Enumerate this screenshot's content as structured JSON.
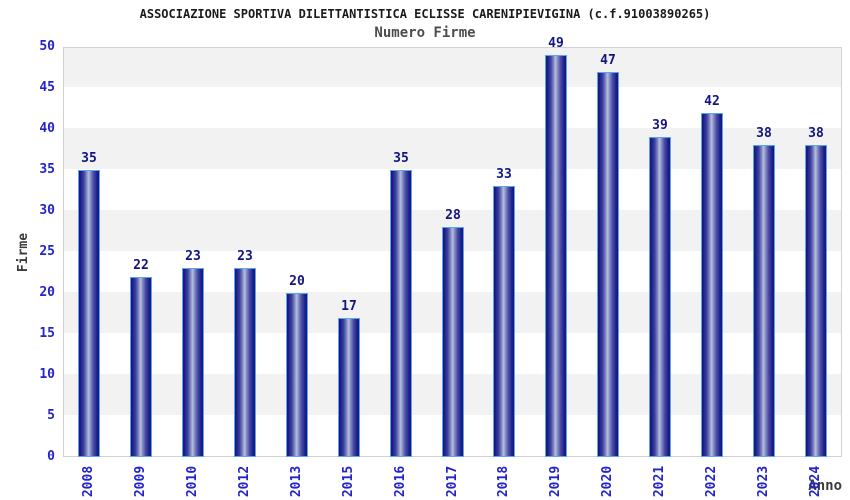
{
  "header": {
    "title": "ASSOCIAZIONE SPORTIVA DILETTANTISTICA ECLISSE CARENIPIEVIGINA (c.f.91003890265)",
    "subtitle": "Numero Firme"
  },
  "chart_data": {
    "type": "bar",
    "title": "ASSOCIAZIONE SPORTIVA DILETTANTISTICA ECLISSE CARENIPIEVIGINA (c.f.91003890265)",
    "subtitle": "Numero Firme",
    "categories": [
      "2008",
      "2009",
      "2010",
      "2012",
      "2013",
      "2015",
      "2016",
      "2017",
      "2018",
      "2019",
      "2020",
      "2021",
      "2022",
      "2023",
      "2024"
    ],
    "values": [
      35,
      22,
      23,
      23,
      20,
      17,
      35,
      28,
      33,
      49,
      47,
      39,
      42,
      38,
      38
    ],
    "xlabel": "Anno",
    "ylabel": "Firme",
    "ylim": [
      0,
      50
    ],
    "ytick_step": 5,
    "yticks": [
      0,
      5,
      10,
      15,
      20,
      25,
      30,
      35,
      40,
      45,
      50
    ],
    "grid": "alternating-horizontal-bands",
    "legend": "none",
    "colors": {
      "bar_dark": "#15157c",
      "bar_highlight": "#b9bfdc",
      "bar_border": "#58a6f0",
      "axis_tick_label": "#2323cc",
      "value_label": "#14147e",
      "band_gray": "#f2f2f2",
      "band_white": "#ffffff",
      "plot_border": "#d2d2d2",
      "axis_title": "#3b3b3b",
      "title_text": "#1a1a1a",
      "subtitle_text": "#4d4d4d"
    }
  }
}
